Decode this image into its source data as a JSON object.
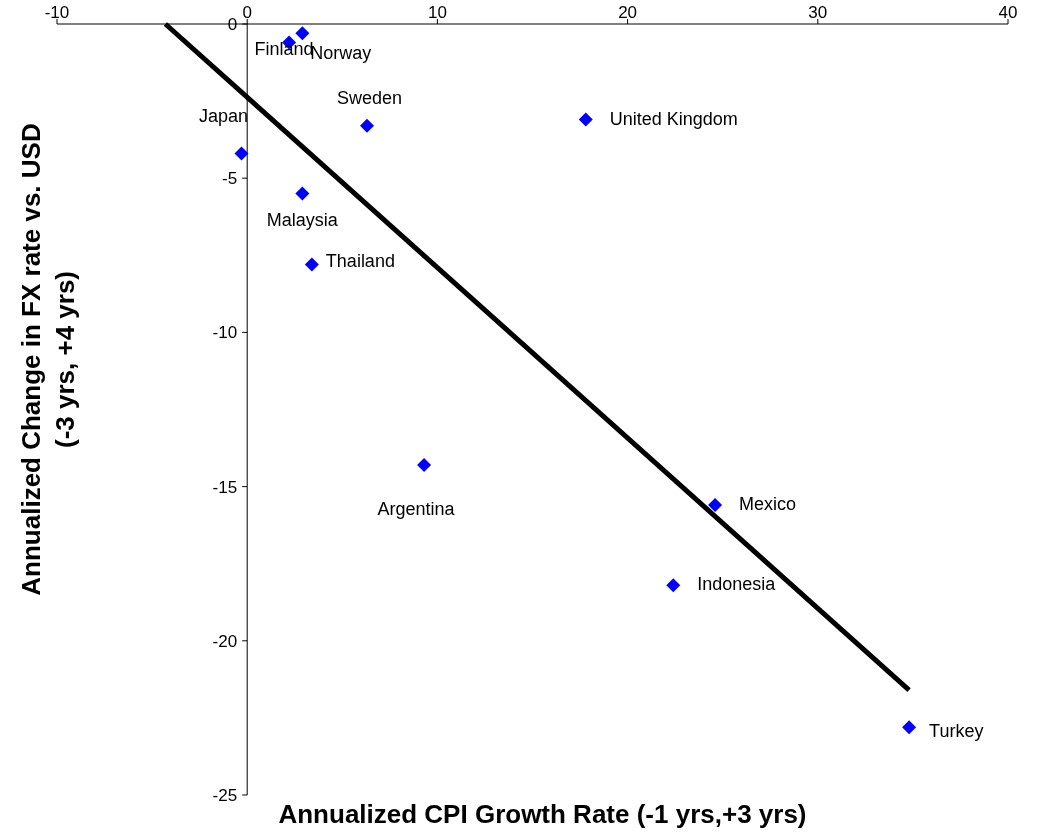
{
  "chart_data": {
    "type": "scatter",
    "xlabel": "Annualized CPI Growth Rate (-1 yrs,+3 yrs)",
    "ylabel": "Annualized Change in FX rate vs. USD\n(-3 yrs, +4 yrs)",
    "xlim": [
      -10,
      40
    ],
    "ylim": [
      -25,
      0
    ],
    "xticks": [
      -10,
      0,
      10,
      20,
      30,
      40
    ],
    "yticks": [
      -25,
      -20,
      -15,
      -10,
      -5,
      0
    ],
    "grid": false,
    "series": [
      {
        "marker": "diamond",
        "color": "#0000ff",
        "x": [
          2.2,
          2.9,
          6.3,
          17.8,
          -0.3,
          2.9,
          3.4,
          9.3,
          24.6,
          22.4,
          34.8
        ],
        "values": [
          -0.6,
          -0.3,
          -3.3,
          -3.1,
          -4.2,
          -5.5,
          -7.8,
          -14.3,
          -15.6,
          -18.2,
          -22.8
        ]
      },
      {
        "type": "line",
        "color": "#000000",
        "x": [
          -4.3,
          34.8
        ],
        "values": [
          0,
          -21.6
        ],
        "line_style": "solid"
      }
    ],
    "annotations": [
      {
        "text": "Finland",
        "x": 2.2,
        "y": -0.6
      },
      {
        "text": "Norway",
        "x": 2.9,
        "y": -0.3
      },
      {
        "text": "Sweden",
        "x": 6.3,
        "y": -3.3
      },
      {
        "text": "United Kingdom",
        "x": 17.8,
        "y": -3.1
      },
      {
        "text": "Japan",
        "x": -0.3,
        "y": -4.2
      },
      {
        "text": "Malaysia",
        "x": 2.9,
        "y": -5.5
      },
      {
        "text": "Thailand",
        "x": 3.4,
        "y": -7.8
      },
      {
        "text": "Argentina",
        "x": 9.3,
        "y": -14.3
      },
      {
        "text": "Mexico",
        "x": 24.6,
        "y": -15.6
      },
      {
        "text": "Indonesia",
        "x": 22.4,
        "y": -18.2
      },
      {
        "text": "Turkey",
        "x": 34.8,
        "y": -22.8
      }
    ]
  }
}
